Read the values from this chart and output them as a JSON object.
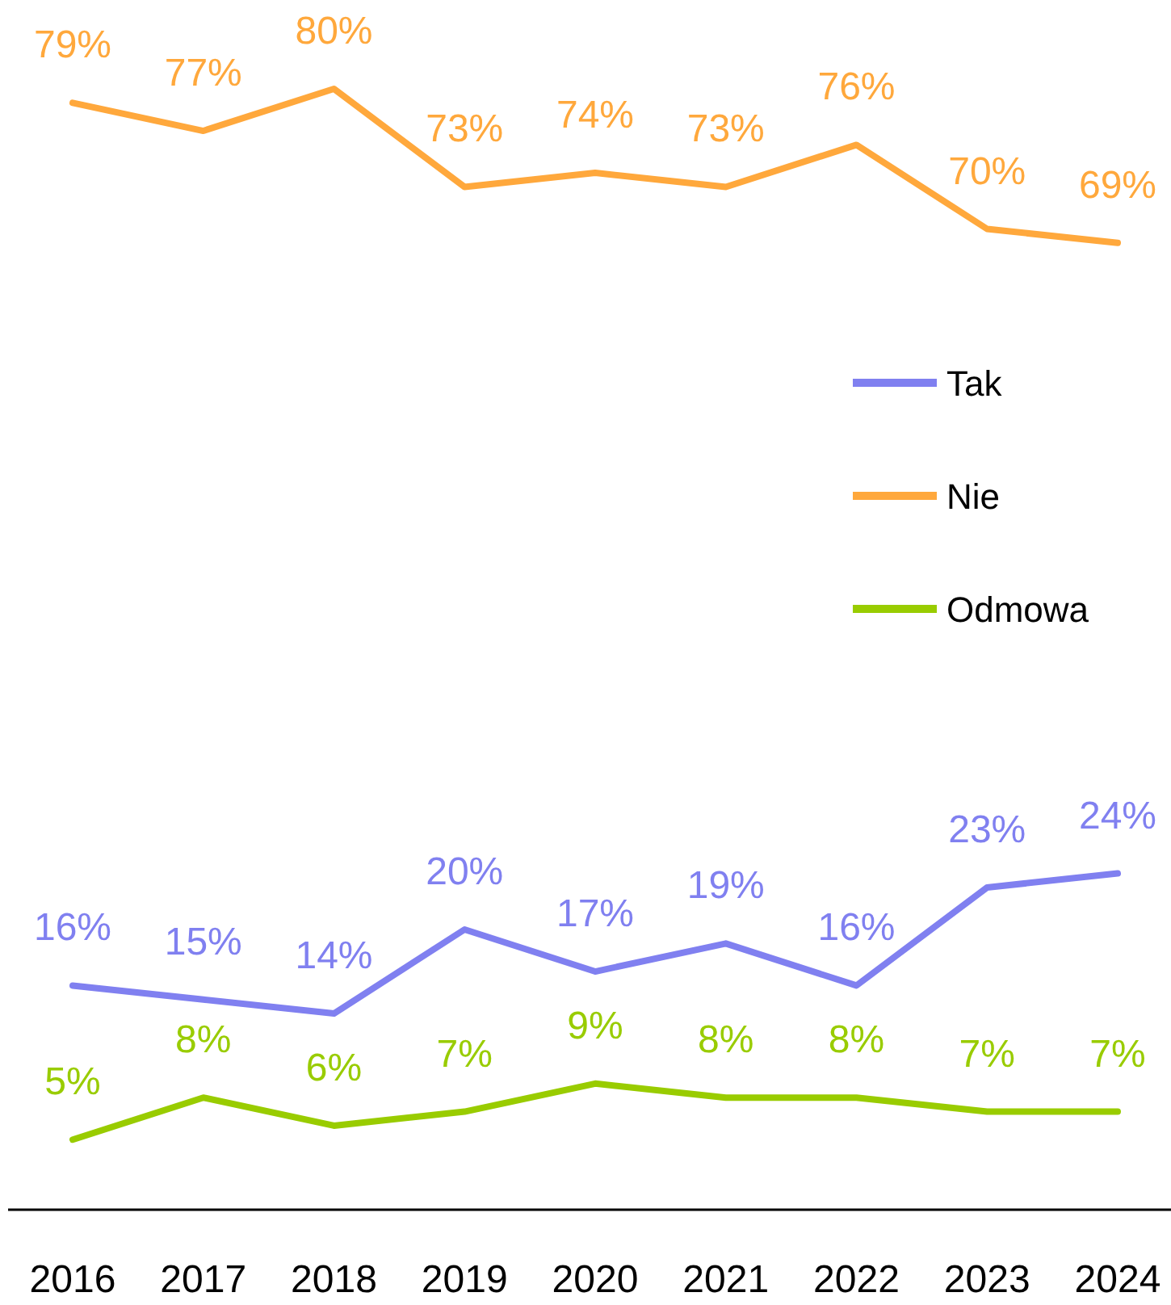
{
  "chart_data": {
    "type": "line",
    "categories": [
      "2016",
      "2017",
      "2018",
      "2019",
      "2020",
      "2021",
      "2022",
      "2023",
      "2024"
    ],
    "tick_labels": "x",
    "legend": "right",
    "marker": "none",
    "line_style": "solid",
    "series": [
      {
        "name": "Tak",
        "color": "#8080f0",
        "values": [
          16,
          15,
          14,
          20,
          17,
          19,
          16,
          23,
          24
        ],
        "value_labels": [
          "16%",
          "15%",
          "14%",
          "20%",
          "17%",
          "19%",
          "16%",
          "23%",
          "24%"
        ]
      },
      {
        "name": "Nie",
        "color": "#ffa83c",
        "values": [
          79,
          77,
          80,
          73,
          74,
          73,
          76,
          70,
          69
        ],
        "value_labels": [
          "79%",
          "77%",
          "80%",
          "73%",
          "74%",
          "73%",
          "76%",
          "70%",
          "69%"
        ]
      },
      {
        "name": "Odmowa",
        "color": "#99cc00",
        "values": [
          5,
          8,
          6,
          7,
          9,
          8,
          8,
          7,
          7
        ],
        "value_labels": [
          "5%",
          "8%",
          "6%",
          "7%",
          "9%",
          "8%",
          "8%",
          "7%",
          "7%"
        ]
      }
    ]
  }
}
